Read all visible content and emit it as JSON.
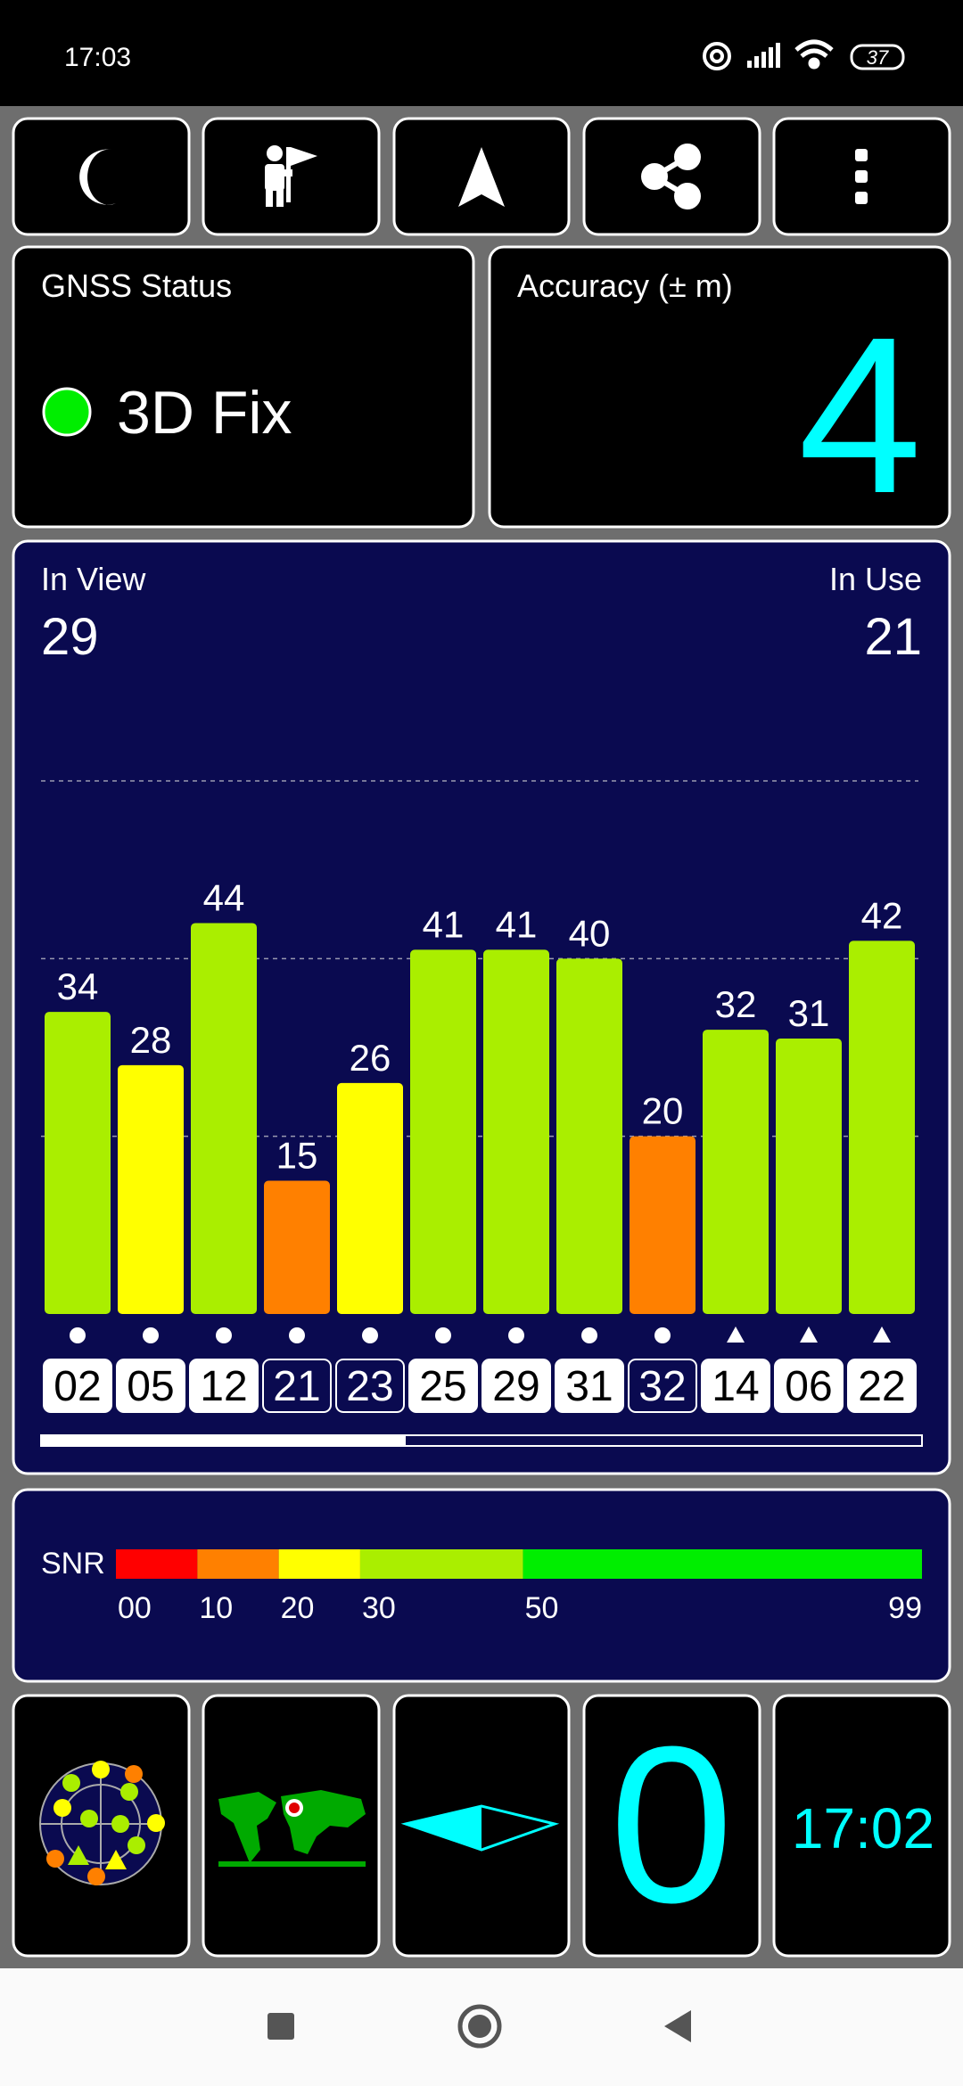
{
  "status_bar": {
    "time": "17:03",
    "battery": "37"
  },
  "gnss_status": {
    "label": "GNSS Status",
    "value": "3D Fix"
  },
  "accuracy": {
    "label": "Accuracy (± m)",
    "value": 4
  },
  "satellites": {
    "in_view_label": "In View",
    "in_view": 29,
    "in_use_label": "In Use",
    "in_use": 21
  },
  "chart_data": {
    "type": "bar",
    "categories": [
      "02",
      "05",
      "12",
      "21",
      "23",
      "25",
      "29",
      "31",
      "32",
      "14",
      "06",
      "22"
    ],
    "values": [
      34,
      28,
      44,
      15,
      26,
      41,
      41,
      40,
      20,
      32,
      31,
      42
    ],
    "colors": [
      "#aaee00",
      "#ffff00",
      "#aaee00",
      "#ff8000",
      "#ffff00",
      "#aaee00",
      "#aaee00",
      "#aaee00",
      "#ff8000",
      "#aaee00",
      "#aaee00",
      "#aaee00"
    ],
    "symbols": [
      "circle",
      "circle",
      "circle",
      "circle",
      "circle",
      "circle",
      "circle",
      "circle",
      "circle",
      "triangle",
      "triangle",
      "triangle"
    ],
    "in_use": [
      true,
      true,
      true,
      false,
      false,
      true,
      true,
      true,
      false,
      true,
      true,
      true
    ],
    "ylim": [
      0,
      60
    ],
    "yticks": [
      20,
      40,
      60
    ],
    "grid": true
  },
  "snr_scale": {
    "label": "SNR",
    "xlim": [
      0,
      99
    ],
    "ticks": [
      {
        "value": 0,
        "label": "00"
      },
      10,
      20,
      30,
      50,
      99
    ],
    "colors": [
      "#ff0000",
      "#ff8000",
      "#ffff00",
      "#aaee00",
      "#00ee00"
    ]
  },
  "tiles": {
    "counter": 0,
    "time": "17:02"
  }
}
